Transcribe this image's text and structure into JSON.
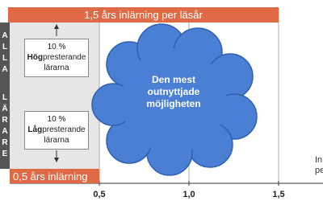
{
  "top_bar": "1,5 års inlärning per läsår",
  "bottom_bar": "0,5 års inlärning",
  "side_label": [
    "ALLA",
    "LÄRARE"
  ],
  "high_box": {
    "percent": "10 %",
    "bold": "Hög",
    "rest": "presterande",
    "line2": "lärarna"
  },
  "low_box": {
    "percent": "10 %",
    "bold": "Låg",
    "rest": "presterande",
    "line2": "lärarna"
  },
  "cloud": "Den mest outnyttjade möjligheten",
  "x_axis": {
    "xlim": [
      0,
      1.5
    ],
    "ticks": [
      {
        "value": 0.5,
        "label": "0,5"
      },
      {
        "value": 1.0,
        "label": "1,0"
      },
      {
        "value": 1.5,
        "label": "1,5"
      }
    ]
  },
  "cut_text": [
    "In",
    "pe"
  ]
}
